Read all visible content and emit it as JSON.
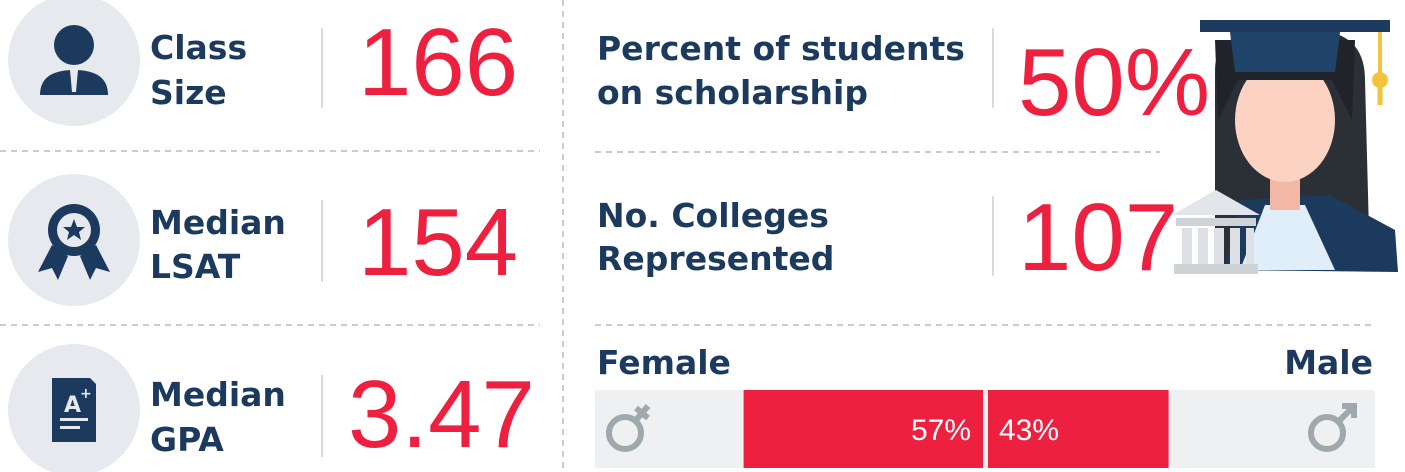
{
  "stats": [
    {
      "label_lines": [
        "Class",
        "Size"
      ],
      "value": "166"
    },
    {
      "label_lines": [
        "Median",
        "LSAT"
      ],
      "value": "154"
    },
    {
      "label_lines": [
        "Median",
        "GPA"
      ],
      "value": "3.47"
    },
    {
      "label_lines": [
        "Percent of students",
        "on scholarship"
      ],
      "value": "50%"
    },
    {
      "label_lines": [
        "No. Colleges",
        "Represented"
      ],
      "value": "107"
    }
  ],
  "gender": {
    "female": {
      "label": "Female",
      "value": 57,
      "value_label": "57%"
    },
    "male": {
      "label": "Male",
      "value": 43,
      "value_label": "43%"
    }
  }
}
